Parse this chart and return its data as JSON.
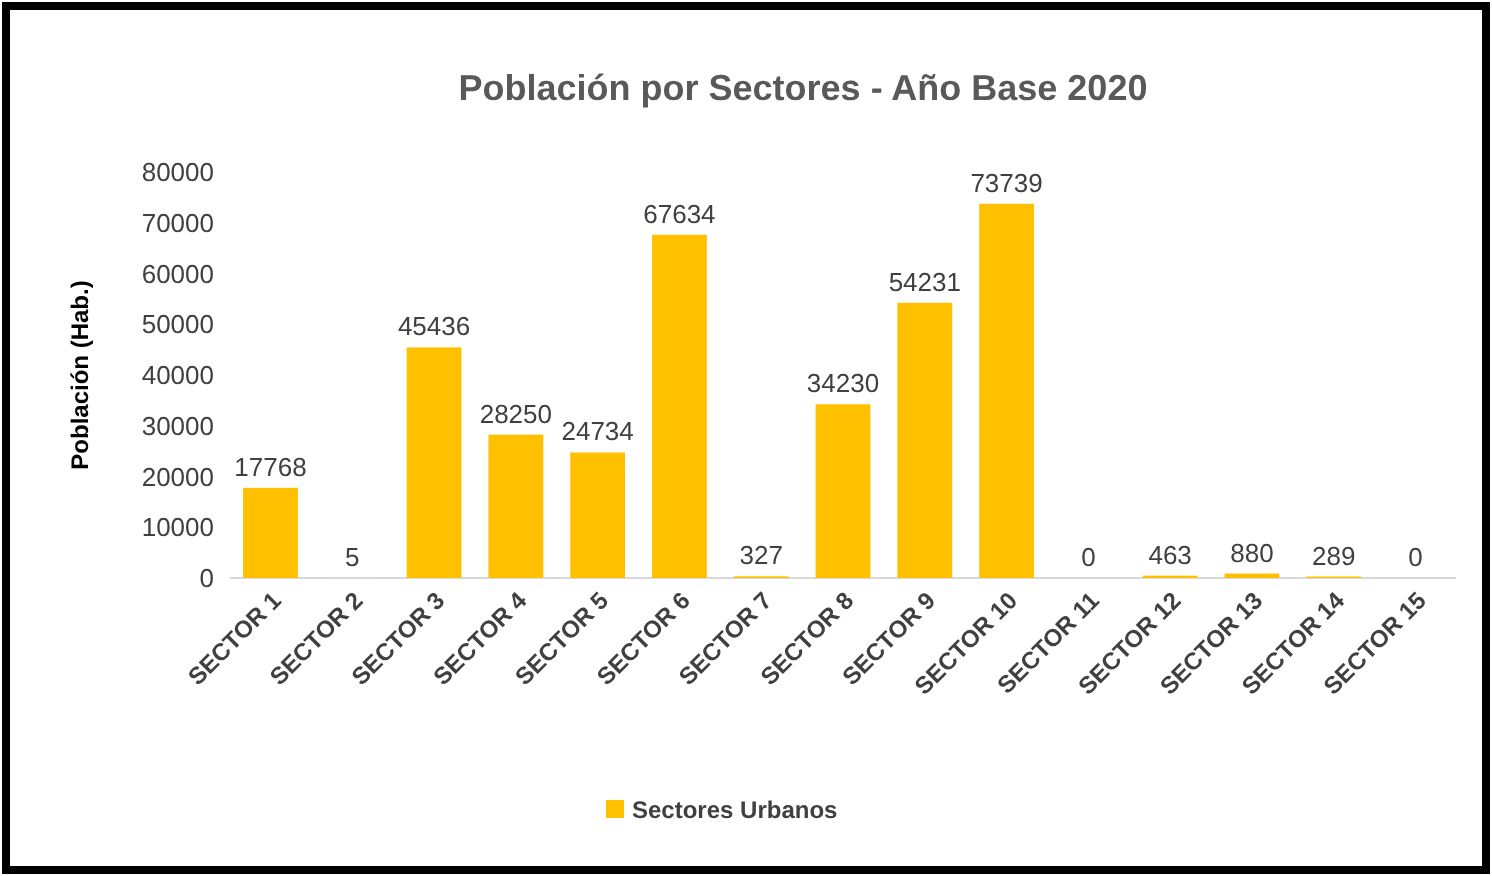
{
  "chart_data": {
    "type": "bar",
    "title": "Población por Sectores - Año Base 2020",
    "ylabel": "Población (Hab.)",
    "categories": [
      "SECTOR 1",
      "SECTOR 2",
      "SECTOR 3",
      "SECTOR 4",
      "SECTOR 5",
      "SECTOR 6",
      "SECTOR 7",
      "SECTOR 8",
      "SECTOR 9",
      "SECTOR 10",
      "SECTOR 11",
      "SECTOR 12",
      "SECTOR 13",
      "SECTOR 14",
      "SECTOR 15"
    ],
    "series": [
      {
        "name": "Sectores Urbanos",
        "color": "#ffc000",
        "values": [
          17768,
          5,
          45436,
          28250,
          24734,
          67634,
          327,
          34230,
          54231,
          73739,
          0,
          463,
          880,
          289,
          0
        ]
      }
    ],
    "ylim": [
      0,
      80000
    ],
    "yticks": [
      0,
      10000,
      20000,
      30000,
      40000,
      50000,
      60000,
      70000,
      80000
    ],
    "grid": false,
    "legend": "bottom",
    "data_labels": true
  }
}
